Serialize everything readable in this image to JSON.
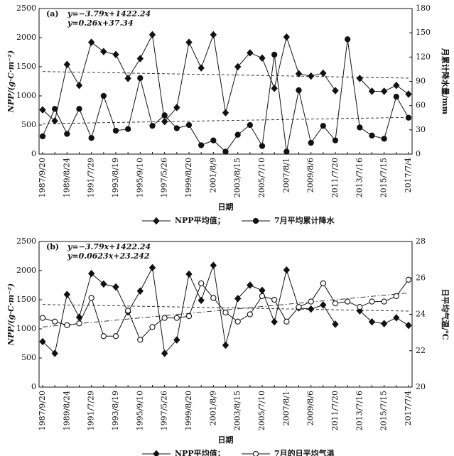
{
  "chart_data": [
    {
      "type": "line",
      "panel_label": "(a)",
      "categories": [
        "1987/9/20",
        null,
        "1989/8/24",
        null,
        "1991/7/29",
        null,
        "1993/8/19",
        null,
        "1995/9/10",
        null,
        "1997/5/26",
        null,
        "1999/8/20",
        null,
        "2001/8/9",
        null,
        "2003/8/15",
        null,
        "2005/7/10",
        null,
        "2007/8/1",
        null,
        "2009/8/6",
        null,
        "2011/7/20",
        null,
        "2013/7/16",
        null,
        "2015/7/15",
        null,
        "2017/7/4"
      ],
      "series": [
        {
          "name": "NPP平均值；",
          "color": "#111111",
          "marker": "diamond",
          "marker_fill": "#111111",
          "axis": "y",
          "values": [
            760,
            570,
            1540,
            1180,
            1920,
            1760,
            1710,
            1300,
            1640,
            2050,
            560,
            800,
            1920,
            1480,
            2050,
            710,
            1500,
            1740,
            1650,
            1130,
            2010,
            1380,
            1340,
            1390,
            1090,
            null,
            1300,
            1080,
            1080,
            1180,
            1030
          ]
        },
        {
          "name": "7月平均累计降水",
          "color": "#111111",
          "marker": "circle",
          "marker_fill": "#111111",
          "axis": "y2",
          "values": [
            22,
            56,
            25,
            56,
            20,
            72,
            29,
            31,
            94,
            35,
            48,
            32,
            36,
            11,
            17,
            3,
            24,
            36,
            10,
            123,
            3,
            79,
            14,
            35,
            17,
            142,
            33,
            23,
            19,
            71,
            45
          ]
        }
      ],
      "trendlines": [
        {
          "label": "y=−3.79x+1422.24",
          "slope": -3.79,
          "intercept": 1422.24,
          "axis": "y",
          "style": "dashed"
        },
        {
          "label": "y=0.26x+37.34",
          "slope": 0.26,
          "intercept": 37.34,
          "axis": "y2",
          "style": "dashed"
        }
      ],
      "xlabel": "日期",
      "ylabel": "NPP/(g·C·m⁻²)",
      "y2label": "月累计降水量/mm",
      "ylim": [
        0,
        2500
      ],
      "yticks": [
        0,
        500,
        1000,
        1500,
        2000,
        2500
      ],
      "y2lim": [
        0,
        180
      ],
      "y2ticks": [
        0,
        30,
        60,
        90,
        120,
        150,
        180
      ]
    },
    {
      "type": "line",
      "panel_label": "(b)",
      "categories": [
        "1987/9/20",
        null,
        "1989/8/24",
        null,
        "1991/7/29",
        null,
        "1993/8/19",
        null,
        "1995/9/10",
        null,
        "1997/5/26",
        null,
        "1999/8/20",
        null,
        "2001/8/9",
        null,
        "2003/8/15",
        null,
        "2005/7/10",
        null,
        "2007/8/1",
        null,
        "2009/8/6",
        null,
        "2011/7/20",
        null,
        "2013/7/16",
        null,
        "2015/7/15",
        null,
        "2017/7/4"
      ],
      "series": [
        {
          "name": "NPP平均值；",
          "color": "#111111",
          "marker": "diamond",
          "marker_fill": "#111111",
          "axis": "y",
          "values": [
            780,
            580,
            1590,
            1200,
            1950,
            1770,
            1720,
            1290,
            1650,
            2050,
            580,
            810,
            1940,
            1490,
            2090,
            720,
            1520,
            1750,
            1660,
            1120,
            2010,
            1360,
            1340,
            1410,
            1080,
            null,
            1310,
            1120,
            1090,
            1190,
            1060
          ]
        },
        {
          "name": "7月的日平均气温",
          "color": "#111111",
          "marker": "circle",
          "marker_fill": "#ffffff",
          "axis": "y2",
          "values": [
            23.8,
            23.6,
            23.4,
            23.5,
            24.9,
            22.8,
            22.8,
            24.2,
            22.6,
            23.3,
            23.8,
            23.8,
            23.9,
            25.7,
            24.9,
            24.1,
            23.6,
            24.0,
            25.0,
            24.8,
            23.6,
            24.4,
            24.7,
            25.7,
            24.6,
            24.7,
            24.4,
            24.7,
            24.7,
            25.0,
            25.9
          ]
        }
      ],
      "trendlines": [
        {
          "label": "y=−3.79x+1422.24",
          "slope": -3.79,
          "intercept": 1422.24,
          "axis": "y",
          "style": "dashed"
        },
        {
          "label": "y=0.0623x+23.242",
          "slope": 0.0623,
          "intercept": 23.242,
          "axis": "y2",
          "style": "dashdot"
        }
      ],
      "xlabel": "日期",
      "ylabel": "NPP/(g·C·m⁻²)",
      "y2label": "日平均气温/℃",
      "ylim": [
        0,
        2500
      ],
      "yticks": [
        0,
        500,
        1000,
        1500,
        2000,
        2500
      ],
      "y2lim": [
        20,
        28
      ],
      "y2ticks": [
        20,
        22,
        24,
        26,
        28
      ]
    }
  ]
}
